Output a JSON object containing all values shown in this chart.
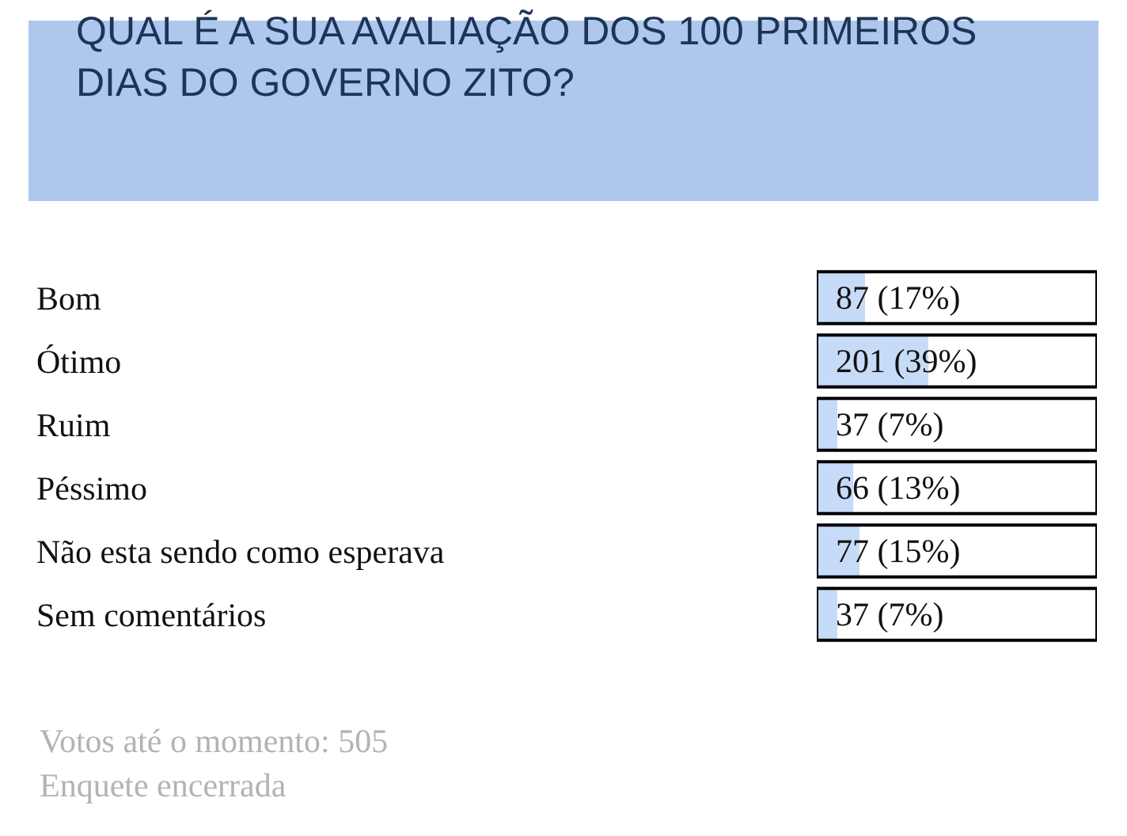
{
  "chart_data": {
    "type": "bar",
    "orientation": "horizontal",
    "title": "QUAL É A SUA AVALIAÇÃO DOS 100 PRIMEIROS\nDIAS DO GOVERNO ZITO?",
    "categories": [
      "Bom",
      "Ótimo",
      "Ruim",
      "Péssimo",
      "Não esta sendo como esperava",
      "Sem comentários"
    ],
    "values": [
      87,
      201,
      37,
      66,
      77,
      37
    ],
    "value_labels": [
      "87 (17%)",
      "201 (39%)",
      "37 (7%)",
      "66 (13%)",
      "77 (15%)",
      "37 (7%)"
    ],
    "color": "#c6dbf7",
    "xlim": [
      0,
      505
    ],
    "tick_labels": "y",
    "legend": false,
    "annotations": [
      "Votos até o momento: 505",
      "Enquete encerrada"
    ]
  }
}
